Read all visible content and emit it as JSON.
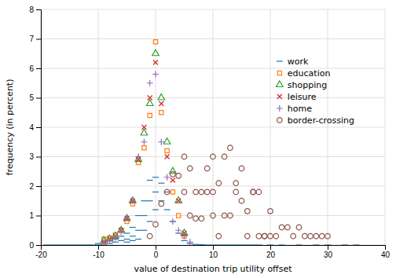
{
  "chart_data": {
    "type": "scatter",
    "xlabel": "value of destination trip utility offset",
    "ylabel": "frequency (in percent)",
    "xlim": [
      -20,
      40
    ],
    "ylim": [
      0,
      8
    ],
    "xticks": [
      -20,
      -10,
      0,
      10,
      20,
      30,
      40
    ],
    "yticks": [
      0,
      1,
      2,
      3,
      4,
      5,
      6,
      7,
      8
    ],
    "grid": true,
    "legend": "center right",
    "series": [
      {
        "name": "work",
        "marker": "dash",
        "x": [
          -19,
          -18,
          -17,
          -16,
          -15,
          -14,
          -13,
          -12,
          -11,
          -10,
          -10,
          -9,
          -9,
          -8,
          -8,
          -7,
          -7,
          -6,
          -6,
          -5,
          -5,
          -5,
          -4,
          -4,
          -4,
          -3,
          -3,
          -3,
          -2,
          -2,
          -2,
          -1,
          -1,
          -1,
          0,
          0,
          0,
          1,
          1,
          2,
          2,
          3,
          4,
          5,
          6,
          7,
          8,
          9,
          10,
          11,
          12,
          13,
          14,
          15,
          16,
          17,
          18,
          20,
          22,
          25,
          28,
          30,
          33,
          35
        ],
        "values": [
          0.0,
          0.0,
          0.0,
          0.0,
          0.0,
          0.0,
          0.0,
          0.0,
          0.0,
          0.05,
          0.0,
          0.1,
          0.0,
          0.15,
          0.05,
          0.2,
          0.1,
          0.3,
          0.15,
          0.4,
          0.2,
          0.1,
          0.6,
          0.3,
          0.15,
          1.0,
          0.5,
          0.2,
          1.5,
          1.0,
          0.5,
          2.2,
          1.5,
          0.8,
          2.3,
          1.8,
          1.2,
          2.1,
          1.5,
          1.8,
          1.2,
          0.8,
          0.4,
          0.15,
          0.05,
          0.02,
          0.01,
          0.0,
          0.0,
          0.0,
          0.0,
          0.0,
          0.0,
          0.0,
          0.0,
          0.0,
          0.0,
          0.0,
          0.0,
          0.0,
          0.0,
          0.0,
          0.0,
          0.0
        ]
      },
      {
        "name": "education",
        "marker": "square",
        "x": [
          -9,
          -8,
          -7,
          -6,
          -5,
          -4,
          -3,
          -2,
          -1,
          0,
          1,
          2,
          3,
          4,
          5
        ],
        "values": [
          0.2,
          0.25,
          0.35,
          0.5,
          0.8,
          1.4,
          2.8,
          3.3,
          4.4,
          6.9,
          4.5,
          3.2,
          1.8,
          1.0,
          0.3
        ]
      },
      {
        "name": "shopping",
        "marker": "triangle",
        "x": [
          -9,
          -8,
          -7,
          -6,
          -5,
          -4,
          -3,
          -2,
          -1,
          0,
          1,
          2,
          3,
          4,
          5
        ],
        "values": [
          0.15,
          0.2,
          0.3,
          0.5,
          0.9,
          1.5,
          2.9,
          3.8,
          4.8,
          6.5,
          5.0,
          3.5,
          2.5,
          1.5,
          0.4
        ]
      },
      {
        "name": "leisure",
        "marker": "x",
        "x": [
          -9,
          -8,
          -7,
          -6,
          -5,
          -4,
          -3,
          -2,
          -1,
          0,
          1,
          2,
          3,
          4,
          5
        ],
        "values": [
          0.1,
          0.2,
          0.3,
          0.5,
          0.9,
          1.5,
          2.9,
          4.0,
          5.0,
          6.2,
          4.8,
          3.0,
          2.2,
          1.5,
          0.4
        ]
      },
      {
        "name": "home",
        "marker": "plus",
        "x": [
          -9,
          -8,
          -7,
          -6,
          -5,
          -4,
          -3,
          -2,
          -1,
          0,
          1,
          2,
          3,
          4,
          5,
          6
        ],
        "values": [
          0.1,
          0.15,
          0.25,
          0.45,
          0.9,
          1.5,
          3.0,
          3.5,
          5.5,
          5.8,
          3.5,
          2.3,
          0.8,
          0.5,
          0.3,
          0.1
        ]
      },
      {
        "name": "border-crossing",
        "marker": "circle",
        "x": [
          -1,
          0,
          1,
          2,
          3,
          4,
          5,
          5,
          6,
          6,
          7,
          7,
          8,
          8,
          9,
          9,
          10,
          10,
          10,
          11,
          11,
          12,
          12,
          13,
          13,
          14,
          14,
          15,
          15,
          16,
          16,
          17,
          17,
          18,
          18,
          19,
          19,
          20,
          20,
          21,
          22,
          23,
          24,
          25,
          26,
          27,
          28,
          29,
          30
        ],
        "values": [
          0.3,
          0.7,
          1.4,
          1.8,
          2.4,
          2.35,
          3.0,
          1.8,
          2.6,
          1.0,
          1.8,
          0.9,
          1.8,
          0.9,
          2.6,
          1.8,
          3.0,
          1.8,
          1.0,
          2.1,
          0.3,
          3.0,
          1.0,
          3.3,
          1.0,
          2.1,
          1.8,
          2.6,
          1.5,
          1.15,
          0.3,
          1.8,
          1.8,
          1.8,
          0.3,
          0.3,
          0.3,
          0.3,
          1.15,
          0.3,
          0.6,
          0.6,
          0.3,
          0.6,
          0.3,
          0.3,
          0.3,
          0.3,
          0.3
        ]
      }
    ]
  }
}
